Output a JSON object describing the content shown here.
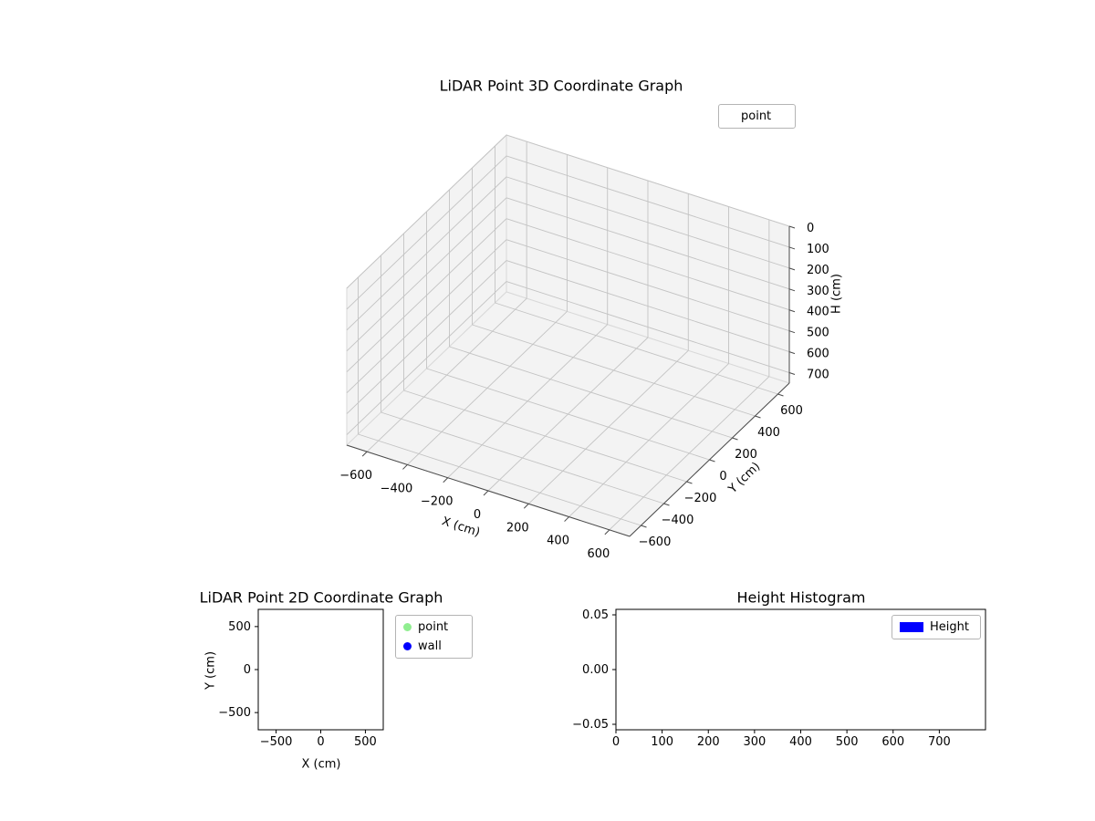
{
  "figure": {
    "background": "#ffffff",
    "pane_color": "#f3f3f3",
    "pane_edge_color": "#d9d9d9",
    "grid_color": "#c3c3c3",
    "axis_color": "#4a4a4a",
    "frame_color": "#000000",
    "text_color": "#000000"
  },
  "chart_data": [
    {
      "type": "scatter3d",
      "title": "LiDAR Point 3D Coordinate Graph",
      "xlabel": "X (cm)",
      "ylabel": "Y (cm)",
      "zlabel": "H (cm)",
      "xlim": [
        -700,
        700
      ],
      "ylim": [
        -700,
        700
      ],
      "zlim": [
        0,
        750
      ],
      "z_axis_inverted": true,
      "grid": true,
      "xticks": [
        -600,
        -400,
        -200,
        0,
        200,
        400,
        600
      ],
      "xtick_labels": [
        "−600",
        "−400",
        "−200",
        "0",
        "200",
        "400",
        "600"
      ],
      "yticks": [
        -600,
        -400,
        -200,
        0,
        200,
        400,
        600
      ],
      "ytick_labels": [
        "−600",
        "−400",
        "−200",
        "0",
        "200",
        "400",
        "600"
      ],
      "zticks": [
        0,
        100,
        200,
        300,
        400,
        500,
        600,
        700
      ],
      "ztick_labels": [
        "0",
        "100",
        "200",
        "300",
        "400",
        "500",
        "600",
        "700"
      ],
      "legend": {
        "position": "upper right",
        "entries": [
          {
            "label": "point"
          }
        ]
      },
      "series": [
        {
          "name": "point",
          "points": []
        }
      ]
    },
    {
      "type": "scatter",
      "title": "LiDAR Point 2D Coordinate Graph",
      "xlabel": "X (cm)",
      "ylabel": "Y (cm)",
      "xlim": [
        -700,
        700
      ],
      "ylim": [
        -700,
        700
      ],
      "grid": false,
      "xticks": [
        -500,
        0,
        500
      ],
      "xtick_labels": [
        "−500",
        "0",
        "500"
      ],
      "yticks": [
        -500,
        0,
        500
      ],
      "ytick_labels": [
        "−500",
        "0",
        "500"
      ],
      "legend": {
        "position": "outside upper right",
        "entries": [
          {
            "label": "point",
            "marker_color": "#90ee90"
          },
          {
            "label": "wall",
            "marker_color": "#0000ff"
          }
        ]
      },
      "series": [
        {
          "name": "point",
          "points": []
        },
        {
          "name": "wall",
          "points": []
        }
      ]
    },
    {
      "type": "histogram",
      "title": "Height Histogram",
      "xlim": [
        0,
        800
      ],
      "ylim": [
        -0.055,
        0.055
      ],
      "grid": false,
      "xticks": [
        0,
        100,
        200,
        300,
        400,
        500,
        600,
        700
      ],
      "xtick_labels": [
        "0",
        "100",
        "200",
        "300",
        "400",
        "500",
        "600",
        "700"
      ],
      "yticks": [
        -0.05,
        0,
        0.05
      ],
      "ytick_labels": [
        "−0.05",
        "0.00",
        "0.05"
      ],
      "legend": {
        "position": "upper right",
        "entries": [
          {
            "label": "Height",
            "color": "#0000ff"
          }
        ]
      },
      "values": []
    }
  ]
}
